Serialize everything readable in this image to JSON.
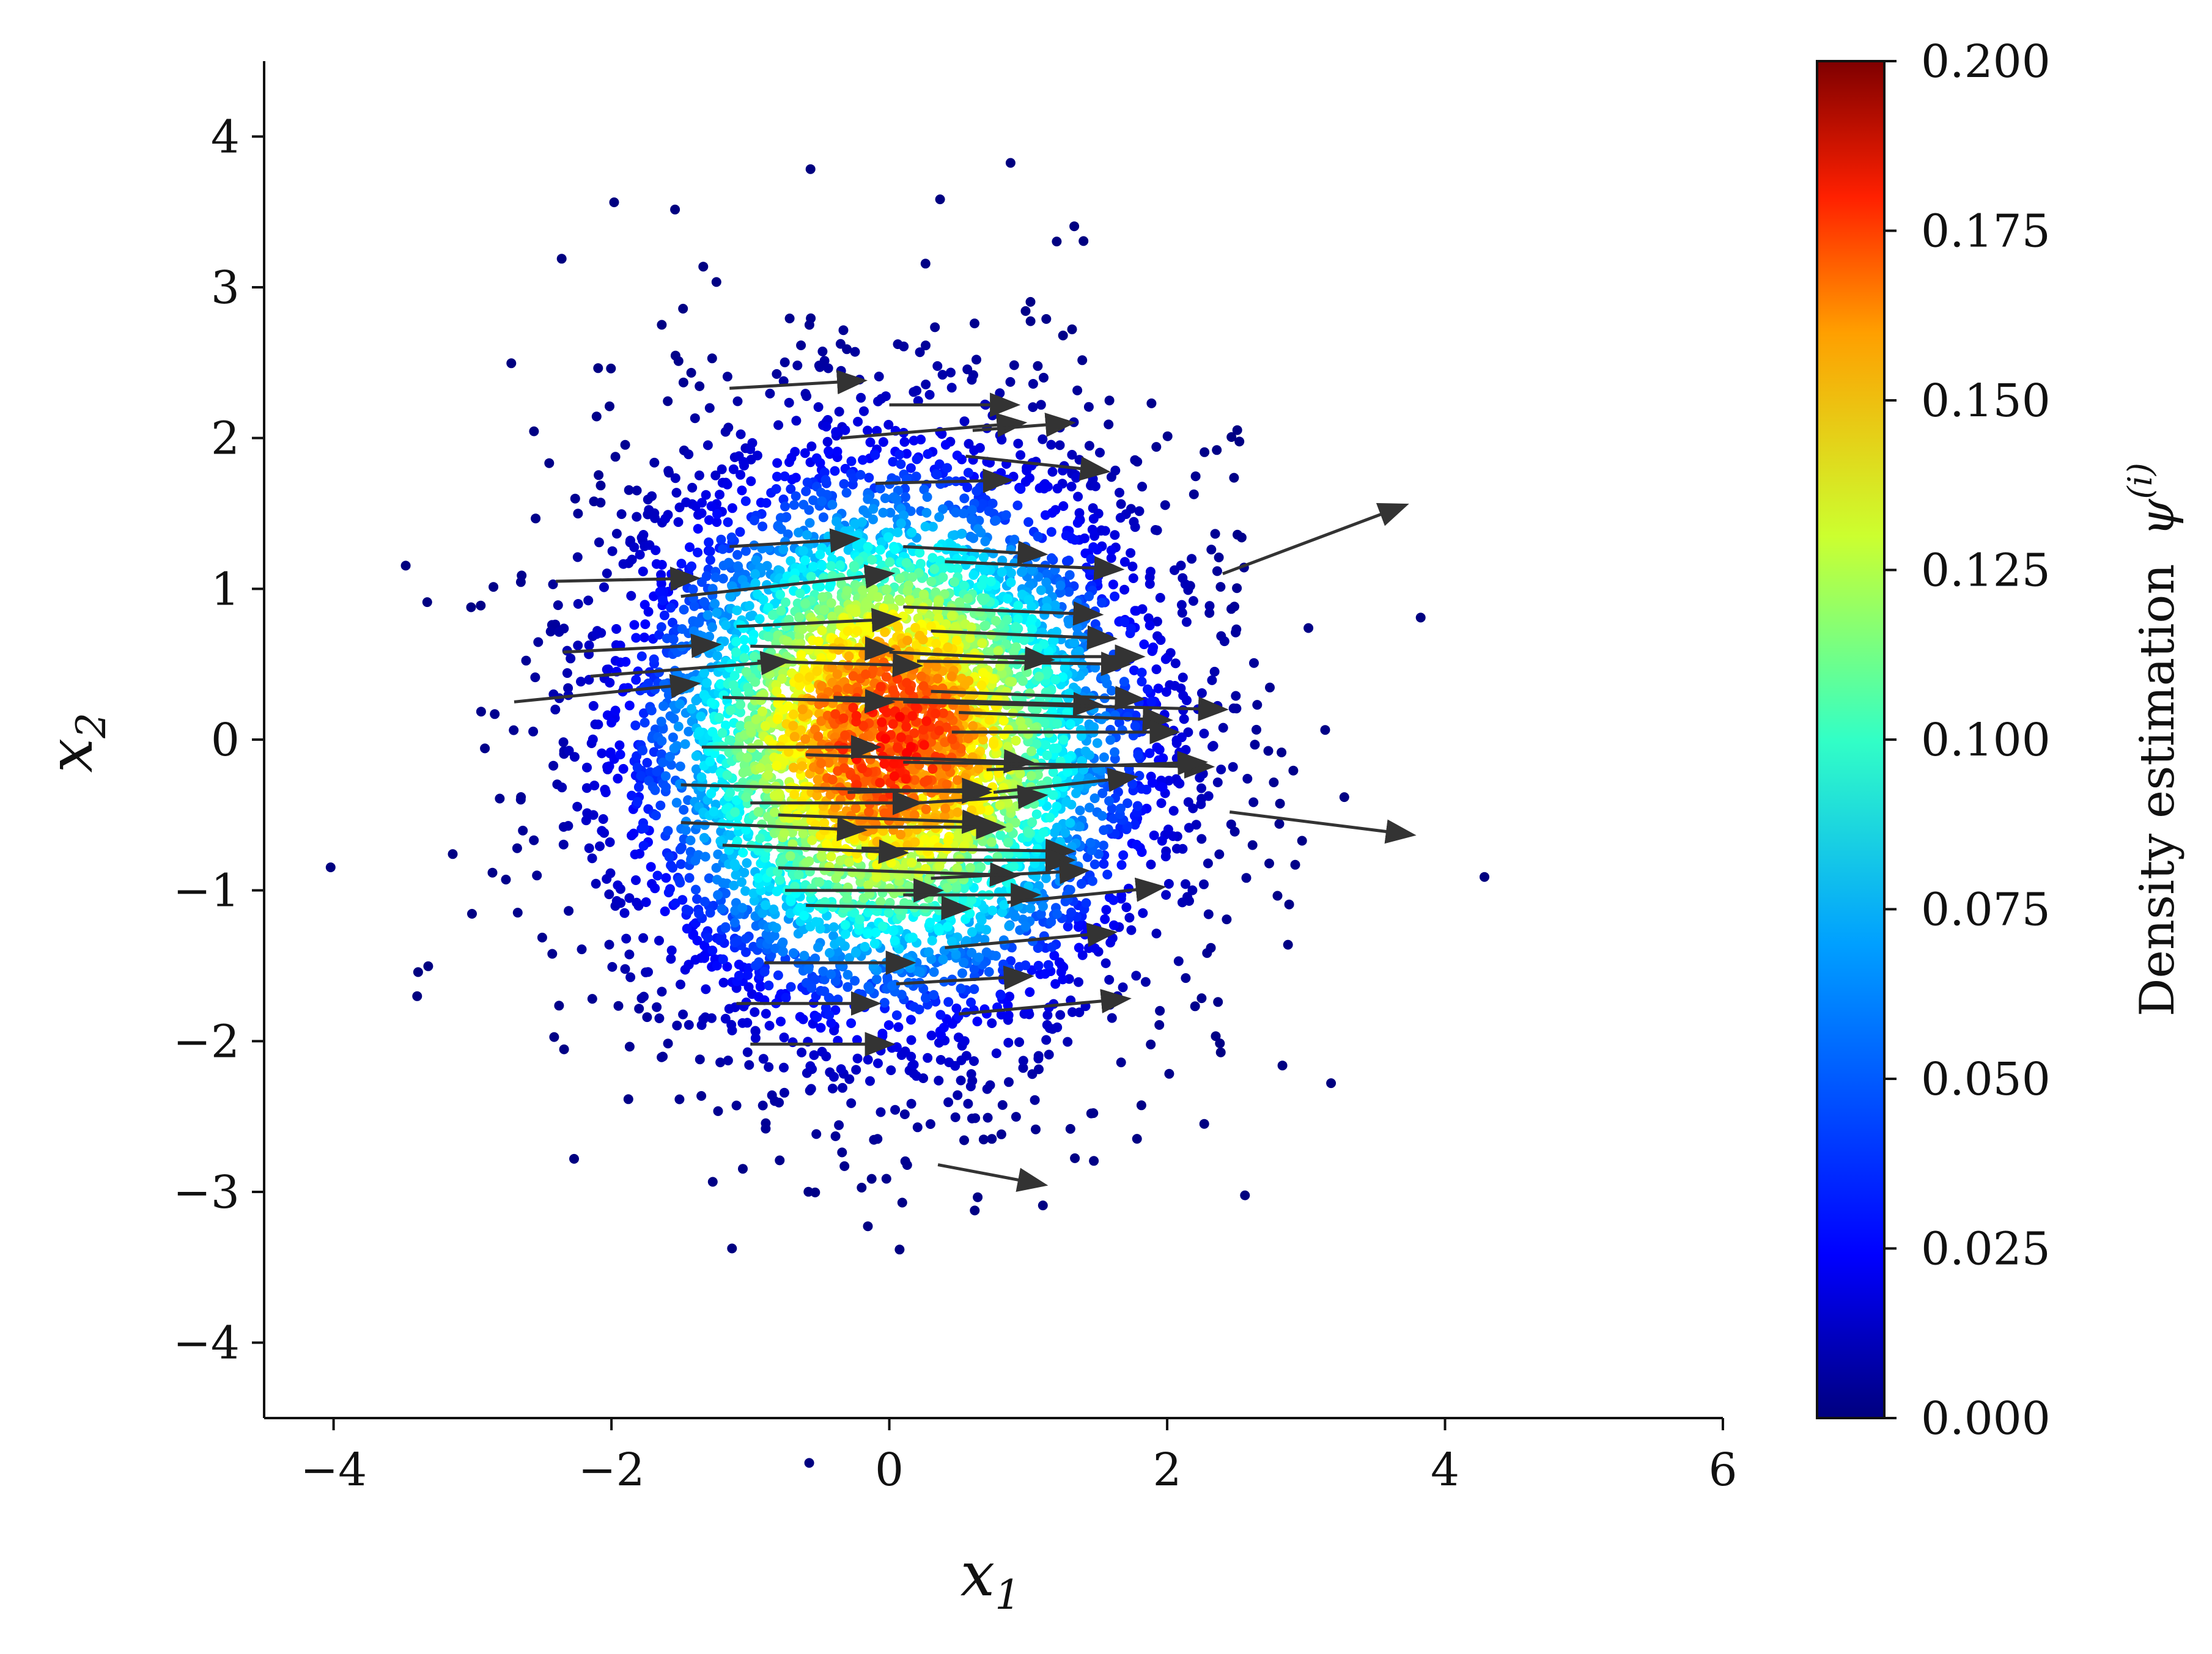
{
  "chart_data": [
    {
      "type": "scatter",
      "title": "",
      "xlabel": {
        "main": "x",
        "sub": "1"
      },
      "ylabel": {
        "main": "x",
        "sub": "2"
      },
      "xlim": [
        -4.5,
        6
      ],
      "ylim": [
        -4.5,
        4.5
      ],
      "xticks": [
        -4,
        -2,
        0,
        2,
        4,
        6
      ],
      "yticks": [
        -4,
        -3,
        -2,
        -1,
        0,
        1,
        2,
        3,
        4
      ],
      "xtick_labels": [
        "−4",
        "−2",
        "0",
        "2",
        "4",
        "6"
      ],
      "ytick_labels": [
        "−4",
        "−3",
        "−2",
        "−1",
        "0",
        "1",
        "2",
        "3",
        "4"
      ],
      "grid": false,
      "colormap": "jet",
      "series": [
        {
          "kind": "points",
          "description_of_distribution": "approx. 6000 samples from a standard 2D normal distribution centered at (0, 0), colored by density estimate",
          "center": [
            0,
            0
          ],
          "std": [
            1,
            1
          ],
          "count": 6000,
          "density_max": 0.2,
          "color_variable": "density"
        },
        {
          "kind": "arrows",
          "color": "#333333",
          "arrows": [
            {
              "x": -1.15,
              "y": 2.33,
              "dx": 0.95,
              "dy": 0.05
            },
            {
              "x": 0.0,
              "y": 2.22,
              "dx": 0.9,
              "dy": 0.0
            },
            {
              "x": -0.35,
              "y": 2.0,
              "dx": 1.3,
              "dy": 0.1
            },
            {
              "x": 0.6,
              "y": 2.05,
              "dx": 0.7,
              "dy": 0.05
            },
            {
              "x": 0.55,
              "y": 1.88,
              "dx": 1.0,
              "dy": -0.1
            },
            {
              "x": -0.1,
              "y": 1.7,
              "dx": 0.95,
              "dy": 0.02
            },
            {
              "x": -1.15,
              "y": 1.28,
              "dx": 0.9,
              "dy": 0.05
            },
            {
              "x": 0.1,
              "y": 1.28,
              "dx": 1.0,
              "dy": -0.05
            },
            {
              "x": 0.4,
              "y": 1.18,
              "dx": 1.25,
              "dy": -0.05
            },
            {
              "x": 2.4,
              "y": 1.1,
              "dx": 1.3,
              "dy": 0.45
            },
            {
              "x": -2.4,
              "y": 1.05,
              "dx": 1.0,
              "dy": 0.02
            },
            {
              "x": -1.5,
              "y": 0.95,
              "dx": 1.5,
              "dy": 0.15
            },
            {
              "x": 0.1,
              "y": 0.88,
              "dx": 1.4,
              "dy": -0.05
            },
            {
              "x": -1.1,
              "y": 0.75,
              "dx": 1.15,
              "dy": 0.05
            },
            {
              "x": 0.3,
              "y": 0.72,
              "dx": 1.3,
              "dy": -0.05
            },
            {
              "x": -2.35,
              "y": 0.58,
              "dx": 1.1,
              "dy": 0.05
            },
            {
              "x": -1.0,
              "y": 0.62,
              "dx": 1.0,
              "dy": -0.02
            },
            {
              "x": -0.95,
              "y": 0.52,
              "dx": 1.15,
              "dy": -0.03
            },
            {
              "x": 0.0,
              "y": 0.58,
              "dx": 1.15,
              "dy": -0.05
            },
            {
              "x": 0.2,
              "y": 0.52,
              "dx": 1.5,
              "dy": -0.02
            },
            {
              "x": 0.75,
              "y": 0.55,
              "dx": 1.05,
              "dy": 0.0
            },
            {
              "x": -2.15,
              "y": 0.42,
              "dx": 1.4,
              "dy": 0.1
            },
            {
              "x": 0.3,
              "y": 0.32,
              "dx": 1.5,
              "dy": -0.05
            },
            {
              "x": -2.7,
              "y": 0.25,
              "dx": 1.3,
              "dy": 0.12
            },
            {
              "x": -1.2,
              "y": 0.28,
              "dx": 1.2,
              "dy": -0.03
            },
            {
              "x": -0.4,
              "y": 0.28,
              "dx": 1.9,
              "dy": -0.05
            },
            {
              "x": 0.1,
              "y": 0.25,
              "dx": 2.3,
              "dy": -0.05
            },
            {
              "x": 0.5,
              "y": 0.18,
              "dx": 1.5,
              "dy": -0.05
            },
            {
              "x": 0.45,
              "y": 0.05,
              "dx": 1.6,
              "dy": 0.0
            },
            {
              "x": -1.35,
              "y": -0.05,
              "dx": 1.25,
              "dy": 0.0
            },
            {
              "x": -0.6,
              "y": -0.1,
              "dx": 1.6,
              "dy": -0.05
            },
            {
              "x": 0.1,
              "y": -0.15,
              "dx": 2.2,
              "dy": -0.03
            },
            {
              "x": 0.7,
              "y": -0.2,
              "dx": 1.55,
              "dy": 0.05
            },
            {
              "x": 0.75,
              "y": -0.35,
              "dx": 1.0,
              "dy": 0.1
            },
            {
              "x": -1.5,
              "y": -0.3,
              "dx": 2.2,
              "dy": -0.05
            },
            {
              "x": -0.3,
              "y": -0.35,
              "dx": 1.0,
              "dy": 0.02
            },
            {
              "x": 0.2,
              "y": -0.42,
              "dx": 0.9,
              "dy": 0.05
            },
            {
              "x": -1.0,
              "y": -0.42,
              "dx": 1.2,
              "dy": 0.0
            },
            {
              "x": -0.8,
              "y": -0.5,
              "dx": 1.5,
              "dy": -0.05
            },
            {
              "x": 2.45,
              "y": -0.48,
              "dx": 1.3,
              "dy": -0.15
            },
            {
              "x": -1.5,
              "y": -0.55,
              "dx": 1.3,
              "dy": -0.05
            },
            {
              "x": -0.3,
              "y": -0.58,
              "dx": 1.1,
              "dy": 0.0
            },
            {
              "x": -1.2,
              "y": -0.7,
              "dx": 1.3,
              "dy": -0.05
            },
            {
              "x": -0.2,
              "y": -0.72,
              "dx": 1.5,
              "dy": -0.02
            },
            {
              "x": 0.2,
              "y": -0.8,
              "dx": 1.1,
              "dy": 0.0
            },
            {
              "x": -0.8,
              "y": -0.85,
              "dx": 1.7,
              "dy": -0.05
            },
            {
              "x": 0.3,
              "y": -0.92,
              "dx": 1.1,
              "dy": 0.05
            },
            {
              "x": -0.75,
              "y": -1.0,
              "dx": 1.1,
              "dy": 0.0
            },
            {
              "x": 0.1,
              "y": -1.03,
              "dx": 0.95,
              "dy": 0.0
            },
            {
              "x": 0.85,
              "y": -1.08,
              "dx": 1.1,
              "dy": 0.1
            },
            {
              "x": -0.6,
              "y": -1.1,
              "dx": 1.15,
              "dy": -0.02
            },
            {
              "x": 0.4,
              "y": -1.38,
              "dx": 1.2,
              "dy": 0.1
            },
            {
              "x": -0.9,
              "y": -1.48,
              "dx": 1.05,
              "dy": 0.0
            },
            {
              "x": 0.05,
              "y": -1.62,
              "dx": 0.95,
              "dy": 0.05
            },
            {
              "x": -1.1,
              "y": -1.75,
              "dx": 1.0,
              "dy": 0.0
            },
            {
              "x": 0.5,
              "y": -1.82,
              "dx": 1.2,
              "dy": 0.1
            },
            {
              "x": -1.0,
              "y": -2.02,
              "dx": 1.0,
              "dy": 0.0
            },
            {
              "x": 0.35,
              "y": -2.82,
              "dx": 0.75,
              "dy": -0.13
            }
          ]
        }
      ],
      "colorbar": {
        "label_text": "Density estimation",
        "label_symbol": "ψ",
        "label_superscript": "(i)",
        "range": [
          0.0,
          0.2
        ],
        "ticks": [
          0.0,
          0.025,
          0.05,
          0.075,
          0.1,
          0.125,
          0.15,
          0.175,
          0.2
        ],
        "tick_labels": [
          "0.000",
          "0.025",
          "0.050",
          "0.075",
          "0.100",
          "0.125",
          "0.150",
          "0.175",
          "0.200"
        ]
      }
    }
  ]
}
